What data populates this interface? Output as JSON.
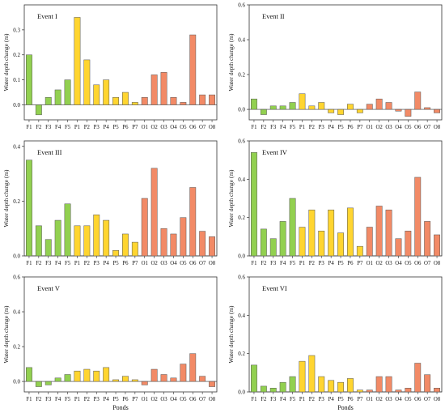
{
  "colors": {
    "F": "#92d050",
    "P": "#ffd530",
    "O": "#f28a66",
    "stroke": "#555555"
  },
  "chart_data": [
    {
      "type": "bar",
      "title": "Event I",
      "xlabel": "",
      "ylabel": "Water depth change (m)",
      "ylim": [
        -0.06,
        0.4
      ],
      "yticks": [
        0.0,
        0.1,
        0.2,
        0.3
      ],
      "categories": [
        "F1",
        "F2",
        "F3",
        "F4",
        "F5",
        "P1",
        "P2",
        "P3",
        "P4",
        "P5",
        "P6",
        "P7",
        "O1",
        "O2",
        "O3",
        "O4",
        "O5",
        "O6",
        "O7",
        "O8"
      ],
      "values": [
        0.2,
        -0.04,
        0.03,
        0.06,
        0.1,
        0.35,
        0.18,
        0.08,
        0.1,
        0.03,
        0.05,
        0.01,
        0.03,
        0.12,
        0.13,
        0.03,
        0.01,
        0.28,
        0.04,
        0.04
      ]
    },
    {
      "type": "bar",
      "title": "Event II",
      "xlabel": "",
      "ylabel": "Water depth change (m)",
      "ylim": [
        -0.06,
        0.6
      ],
      "yticks": [
        0.0,
        0.2,
        0.4,
        0.6
      ],
      "categories": [
        "F1",
        "F2",
        "F3",
        "F4",
        "F5",
        "P1",
        "P2",
        "P3",
        "P4",
        "P5",
        "P6",
        "P7",
        "O1",
        "O2",
        "O3",
        "O4",
        "O5",
        "O6",
        "O7",
        "O8"
      ],
      "values": [
        0.06,
        -0.03,
        0.02,
        0.02,
        0.04,
        0.09,
        0.02,
        0.04,
        -0.02,
        -0.03,
        0.03,
        -0.02,
        0.03,
        0.06,
        0.04,
        -0.01,
        -0.04,
        0.1,
        0.01,
        -0.02
      ]
    },
    {
      "type": "bar",
      "title": "Event III",
      "xlabel": "",
      "ylabel": "Water depth change (m)",
      "ylim": [
        0,
        0.42
      ],
      "yticks": [
        0.0,
        0.2,
        0.4
      ],
      "categories": [
        "F1",
        "F2",
        "F3",
        "F4",
        "F5",
        "P1",
        "P2",
        "P3",
        "P4",
        "P5",
        "P6",
        "P7",
        "O1",
        "O2",
        "O3",
        "O4",
        "O5",
        "O6",
        "O7",
        "O8"
      ],
      "values": [
        0.35,
        0.11,
        0.06,
        0.13,
        0.19,
        0.11,
        0.11,
        0.15,
        0.13,
        0.02,
        0.08,
        0.05,
        0.21,
        0.32,
        0.1,
        0.08,
        0.14,
        0.25,
        0.09,
        0.07
      ]
    },
    {
      "type": "bar",
      "title": "Event IV",
      "xlabel": "",
      "ylabel": "Water depth change (m)",
      "ylim": [
        0,
        0.6
      ],
      "yticks": [
        0.0,
        0.2,
        0.4,
        0.6
      ],
      "categories": [
        "F1",
        "F2",
        "F3",
        "F4",
        "F5",
        "P1",
        "P2",
        "P3",
        "P4",
        "P5",
        "P6",
        "P7",
        "O1",
        "O2",
        "O3",
        "O4",
        "O5",
        "O6",
        "O7",
        "O8"
      ],
      "values": [
        0.54,
        0.14,
        0.09,
        0.18,
        0.3,
        0.15,
        0.24,
        0.13,
        0.24,
        0.12,
        0.25,
        0.05,
        0.15,
        0.26,
        0.24,
        0.09,
        0.13,
        0.41,
        0.18,
        0.11
      ]
    },
    {
      "type": "bar",
      "title": "Event V",
      "xlabel": "",
      "ylabel": "Water depth change (m)",
      "ylim": [
        -0.06,
        0.6
      ],
      "yticks": [
        0.0,
        0.2,
        0.4,
        0.6
      ],
      "categories": [
        "F1",
        "F2",
        "F3",
        "F4",
        "F5",
        "P1",
        "P2",
        "P3",
        "P4",
        "P5",
        "P6",
        "P7",
        "O1",
        "O2",
        "O3",
        "O4",
        "O5",
        "O6",
        "O7",
        "O8"
      ],
      "values": [
        0.08,
        -0.03,
        -0.02,
        0.02,
        0.04,
        0.06,
        0.07,
        0.06,
        0.08,
        0.01,
        0.03,
        0.01,
        -0.02,
        0.07,
        0.04,
        0.02,
        0.1,
        0.16,
        0.03,
        -0.03
      ]
    },
    {
      "type": "bar",
      "title": "Event VI",
      "xlabel": "Ponds",
      "ylabel": "Water depth change (m)",
      "ylim": [
        0,
        0.6
      ],
      "yticks": [
        0.0,
        0.2,
        0.4,
        0.6
      ],
      "categories": [
        "F1",
        "F2",
        "F3",
        "F4",
        "F5",
        "P1",
        "P2",
        "P3",
        "P4",
        "P5",
        "P6",
        "P7",
        "O1",
        "O2",
        "O3",
        "O4",
        "O5",
        "O6",
        "O7",
        "O8"
      ],
      "values": [
        0.14,
        0.03,
        0.02,
        0.05,
        0.08,
        0.16,
        0.19,
        0.08,
        0.06,
        0.05,
        0.07,
        0.01,
        0.01,
        0.08,
        0.08,
        0.01,
        0.02,
        0.15,
        0.09,
        0.02
      ]
    }
  ],
  "shared_xlabel": "Ponds"
}
